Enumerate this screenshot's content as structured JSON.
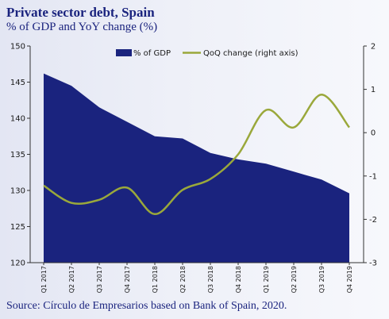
{
  "header": {
    "title": "Private sector debt, Spain",
    "subtitle": "% of GDP and YoY change (%)"
  },
  "footer": {
    "source": "Source: Círculo de Empresarios based on Bank of Spain, 2020."
  },
  "chart_data": {
    "type": "area",
    "categories": [
      "Q1 2017",
      "Q2 2017",
      "Q3 2017",
      "Q4 2017",
      "Q1 2018",
      "Q2 2018",
      "Q3 2018",
      "Q4 2018",
      "Q1 2019",
      "Q2 2019",
      "Q3 2019",
      "Q4 2019"
    ],
    "series": [
      {
        "name": "% of GDP",
        "type": "area",
        "axis": "left",
        "color": "#1a237e",
        "values": [
          146.2,
          144.5,
          141.5,
          139.5,
          137.5,
          137.2,
          135.2,
          134.3,
          133.7,
          132.6,
          131.5,
          129.6
        ]
      },
      {
        "name": "QoQ change (right axis)",
        "type": "line",
        "axis": "right",
        "color": "#9aa83b",
        "values": [
          -1.22,
          -1.62,
          -1.55,
          -1.27,
          -1.88,
          -1.32,
          -1.07,
          -0.5,
          0.52,
          0.12,
          0.88,
          0.12
        ]
      }
    ],
    "y_left": {
      "min": 120,
      "max": 150,
      "ticks": [
        120,
        125,
        130,
        135,
        140,
        145,
        150
      ]
    },
    "y_right": {
      "min": -3,
      "max": 2,
      "ticks": [
        -3,
        -2,
        -1,
        0,
        1,
        2
      ]
    },
    "legend_position": "top",
    "grid": false
  }
}
